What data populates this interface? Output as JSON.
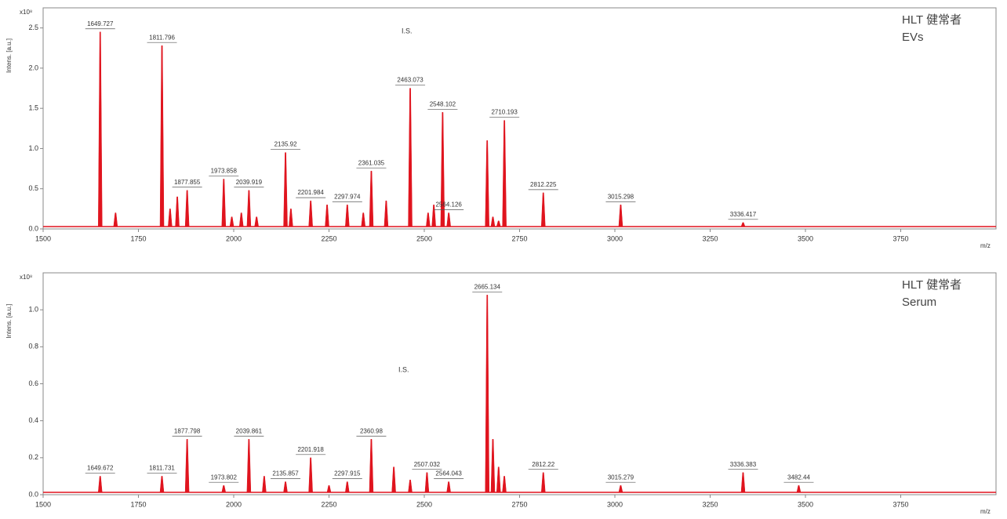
{
  "chart_data": [
    {
      "type": "spectrum",
      "title": "HLT 健常者",
      "subtitle": "EVs",
      "y_label": "Intens. [a.u.]",
      "x_label": "m/z",
      "scale_label": "x10⁸",
      "color": "#e0141e",
      "annotation": "I.S.",
      "xlim": [
        1500,
        4000
      ],
      "xticks": [
        1500,
        1750,
        2000,
        2250,
        2500,
        2750,
        3000,
        3250,
        3500,
        3750
      ],
      "ylim": [
        0,
        2.75
      ],
      "yticks": [
        {
          "value": 0,
          "label": "0.0"
        },
        0.5,
        {
          "value": 1,
          "label": "1.0"
        },
        1.5,
        {
          "value": 2,
          "label": "2.0"
        },
        2.5
      ],
      "peaks": {
        "x": [
          1649.727,
          1811.796,
          1877.855,
          1973.858,
          2039.919,
          2135.92,
          2201.984,
          2297.974,
          2361.035,
          2463.073,
          2548.102,
          2564.126,
          2710.193,
          2812.225,
          3015.298,
          3336.417
        ],
        "values": [
          2.45,
          2.28,
          0.48,
          0.62,
          0.48,
          0.95,
          0.35,
          0.3,
          0.72,
          1.75,
          1.45,
          0.2,
          1.35,
          0.45,
          0.3,
          0.08
        ]
      },
      "minor_peaks": {
        "x": [
          1690,
          1833,
          1852,
          1995,
          2020,
          2060,
          2150,
          2245,
          2340,
          2400,
          2510,
          2525,
          2665,
          2680,
          2695
        ],
        "values": [
          0.2,
          0.25,
          0.4,
          0.15,
          0.2,
          0.15,
          0.25,
          0.3,
          0.2,
          0.35,
          0.2,
          0.3,
          1.1,
          0.15,
          0.1
        ]
      }
    },
    {
      "type": "spectrum",
      "title": "HLT 健常者",
      "subtitle": "Serum",
      "y_label": "Intens. [a.u.]",
      "x_label": "m/z",
      "scale_label": "x10⁸",
      "color": "#e0141e",
      "annotation": "I.S.",
      "xlim": [
        1500,
        4000
      ],
      "xticks": [
        1500,
        1750,
        2000,
        2250,
        2500,
        2750,
        3000,
        3250,
        3500,
        3750
      ],
      "ylim": [
        0,
        1.2
      ],
      "yticks": [
        {
          "value": 0,
          "label": "0.0"
        },
        0.2,
        0.4,
        0.6,
        0.8,
        {
          "value": 1,
          "label": "1.0"
        }
      ],
      "peaks": {
        "x": [
          1649.672,
          1811.731,
          1877.798,
          1973.802,
          2039.861,
          2135.857,
          2201.918,
          2297.915,
          2360.98,
          2507.032,
          2564.043,
          2665.134,
          2812.22,
          3015.279,
          3336.383,
          3482.44
        ],
        "values": [
          0.1,
          0.1,
          0.3,
          0.05,
          0.3,
          0.07,
          0.2,
          0.07,
          0.3,
          0.12,
          0.07,
          1.08,
          0.12,
          0.05,
          0.12,
          0.05
        ]
      },
      "minor_peaks": {
        "x": [
          2080,
          2250,
          2420,
          2463,
          2680,
          2695,
          2710
        ],
        "values": [
          0.1,
          0.05,
          0.15,
          0.08,
          0.3,
          0.15,
          0.1
        ]
      }
    }
  ]
}
